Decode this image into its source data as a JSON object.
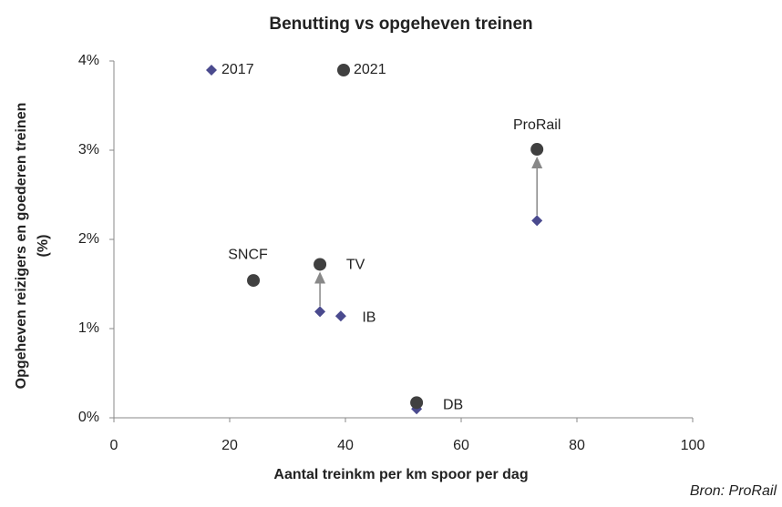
{
  "chart_data": {
    "type": "scatter",
    "title": "Benutting vs opgeheven treinen",
    "x_label": "Aantal treinkm per km spoor per dag",
    "y_label": [
      "Opgeheven reizigers en goederen treinen",
      "(%)"
    ],
    "source": "Bron: ProRail",
    "xlim": [
      0,
      100
    ],
    "xticks": [
      0,
      20,
      40,
      60,
      80,
      100
    ],
    "ylim": [
      0,
      4
    ],
    "yticks": [
      {
        "value": 0,
        "label": "0%"
      },
      {
        "value": 1,
        "label": "1%"
      },
      {
        "value": 2,
        "label": "2%"
      },
      {
        "value": 3,
        "label": "3%"
      },
      {
        "value": 4,
        "label": "4%"
      }
    ],
    "legend": "top-left",
    "series": [
      {
        "name": "2017",
        "marker": "diamond",
        "color": "#4a4a8e",
        "x": [
          73.1,
          35.6,
          39.2,
          52.3
        ],
        "values": [
          2.21,
          1.19,
          1.14,
          0.1
        ],
        "labels": [
          null,
          null,
          "IB",
          null
        ]
      },
      {
        "name": "2021",
        "marker": "circle",
        "color": "#404040",
        "x": [
          73.1,
          35.6,
          24.1,
          52.3
        ],
        "values": [
          3.01,
          1.72,
          1.54,
          0.17
        ],
        "labels": [
          "ProRail",
          "TV",
          "SNCF",
          "DB"
        ]
      }
    ]
  }
}
